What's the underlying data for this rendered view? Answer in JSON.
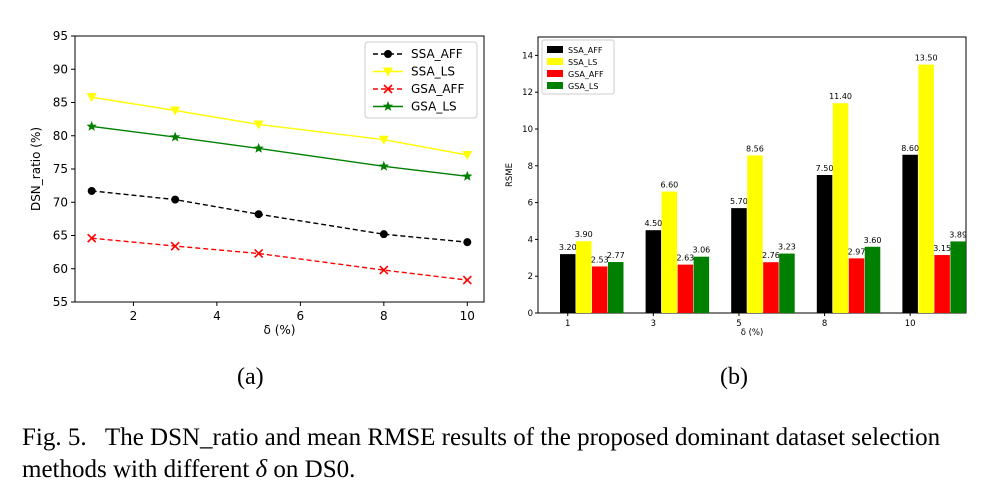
{
  "chart_data": [
    {
      "type": "line",
      "xlabel": "δ (%)",
      "ylabel": "DSN_ratio (%)",
      "xlim": [
        0.6,
        10.4
      ],
      "ylim": [
        55,
        95
      ],
      "xticks": [
        2,
        4,
        6,
        8,
        10
      ],
      "yticks": [
        55,
        60,
        65,
        70,
        75,
        80,
        85,
        90,
        95
      ],
      "x": [
        1,
        3,
        5,
        8,
        10
      ],
      "grid": false,
      "legend_position": "top-right",
      "series": [
        {
          "name": "SSA_AFF",
          "color": "#000000",
          "marker": "circle",
          "dashed": true,
          "values": [
            71.7,
            70.4,
            68.2,
            65.2,
            64.0
          ]
        },
        {
          "name": "SSA_LS",
          "color": "#ffff00",
          "marker": "triangle-down",
          "dashed": false,
          "values": [
            85.8,
            83.8,
            81.7,
            79.4,
            77.1
          ]
        },
        {
          "name": "GSA_AFF",
          "color": "#ff0000",
          "marker": "x",
          "dashed": true,
          "values": [
            64.6,
            63.4,
            62.3,
            59.8,
            58.3
          ]
        },
        {
          "name": "GSA_LS",
          "color": "#008000",
          "marker": "star",
          "dashed": false,
          "values": [
            81.4,
            79.8,
            78.1,
            75.4,
            73.9
          ]
        }
      ]
    },
    {
      "type": "bar",
      "xlabel": "δ (%)",
      "ylabel": "RSME",
      "categories": [
        "1",
        "3",
        "5",
        "8",
        "10"
      ],
      "ylim": [
        0,
        15
      ],
      "yticks": [
        0,
        2,
        4,
        6,
        8,
        10,
        12,
        14
      ],
      "grid": false,
      "legend_position": "top-left",
      "series": [
        {
          "name": "SSA_AFF",
          "color": "#000000",
          "values": [
            3.2,
            4.5,
            5.7,
            7.5,
            8.6
          ],
          "labels": [
            "3.20",
            "4.50",
            "5.70",
            "7.50",
            "8.60"
          ]
        },
        {
          "name": "SSA_LS",
          "color": "#ffff00",
          "values": [
            3.9,
            6.6,
            8.56,
            11.4,
            13.5
          ],
          "labels": [
            "3.90",
            "6.60",
            "8.56",
            "11.40",
            "13.50"
          ]
        },
        {
          "name": "GSA_AFF",
          "color": "#ff0000",
          "values": [
            2.53,
            2.63,
            2.76,
            2.97,
            3.15
          ],
          "labels": [
            "2.53",
            "2.63",
            "2.76",
            "2.97",
            "3.15"
          ]
        },
        {
          "name": "GSA_LS",
          "color": "#008000",
          "values": [
            2.77,
            3.06,
            3.23,
            3.6,
            3.89
          ],
          "labels": [
            "2.77",
            "3.06",
            "3.23",
            "3.60",
            "3.89"
          ]
        }
      ]
    }
  ],
  "subfig_a_label": "(a)",
  "subfig_b_label": "(b)",
  "caption": {
    "fig_label": "Fig. 5.",
    "text_before": "The DSN_ratio and mean RMSE results of the proposed dominant dataset selection methods with different",
    "delta_symbol": "δ",
    "text_after": "on DS0."
  }
}
